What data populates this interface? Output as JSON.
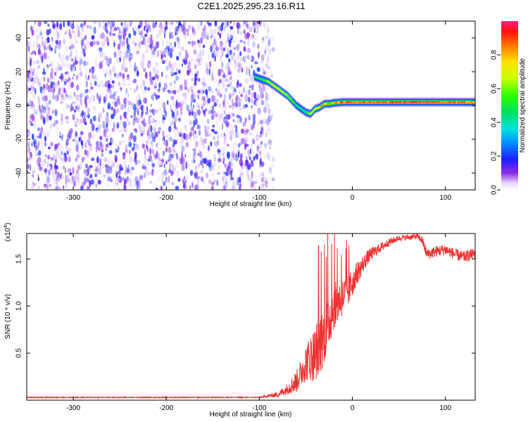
{
  "title": "C2E1.2025.295.23.16.R11",
  "chart_data": [
    {
      "type": "heatmap",
      "xlabel": "Height of straight line (km)",
      "ylabel": "Frequency (Hz)",
      "xlim": [
        -350,
        132
      ],
      "ylim": [
        -50,
        50
      ],
      "x_ticks": [
        -300,
        -200,
        -100,
        0,
        100
      ],
      "y_ticks": [
        -40,
        -20,
        0,
        20,
        40
      ],
      "noise_region": {
        "x": [
          -350,
          -85
        ],
        "y": [
          -50,
          50
        ],
        "typical_amplitude": 0.2
      },
      "signal_track": {
        "x": [
          -105,
          -100,
          -95,
          -90,
          -85,
          -80,
          -75,
          -70,
          -65,
          -60,
          -55,
          -50,
          -45,
          -40,
          -35,
          -30,
          -25,
          -20,
          -10,
          0,
          20,
          50,
          80,
          110,
          132
        ],
        "freq": [
          17,
          16,
          15,
          14,
          12,
          10,
          8,
          6,
          3,
          0,
          -2,
          -4,
          -5,
          -2,
          -1,
          1,
          1,
          1.5,
          2,
          2,
          2,
          2,
          2,
          2,
          2
        ],
        "amplitude": [
          0.45,
          0.5,
          0.55,
          0.65,
          0.75,
          0.75,
          0.7,
          0.65,
          0.6,
          0.5,
          0.5,
          0.55,
          0.7,
          0.75,
          0.8,
          0.85,
          0.85,
          0.85,
          0.9,
          0.9,
          0.9,
          0.95,
          0.95,
          0.9,
          0.85
        ]
      },
      "colorbar": {
        "label": "Normalized spectral amplitude",
        "range": [
          0,
          1
        ],
        "ticks": [
          "0.0",
          "0.2",
          "0.4",
          "0.6",
          "0.8"
        ],
        "tick_values": [
          0,
          0.2,
          0.4,
          0.6,
          0.8
        ]
      }
    },
    {
      "type": "line",
      "xlabel": "Height of straight line (km)",
      "ylabel": "SNR (10 * v/v)",
      "y_scale_label": "(x10",
      "y_scale_exponent": "4",
      "y_scale_suffix": ")",
      "xlim": [
        -350,
        132
      ],
      "ylim": [
        0,
        1.77
      ],
      "x_ticks": [
        -300,
        -200,
        -100,
        0,
        100
      ],
      "y_ticks": [
        0.5,
        1.0,
        1.5
      ],
      "y_tick_labels": [
        "0.5",
        "1.0",
        "1.5"
      ],
      "series": [
        {
          "name": "SNR",
          "color": "#ee3333",
          "x": [
            -350,
            -100,
            -80,
            -70,
            -60,
            -55,
            -50,
            -45,
            -40,
            -35,
            -30,
            -25,
            -20,
            -15,
            -10,
            -5,
            0,
            5,
            10,
            15,
            20,
            30,
            40,
            50,
            60,
            70,
            75,
            80,
            90,
            100,
            110,
            120,
            132
          ],
          "y": [
            0.03,
            0.03,
            0.06,
            0.12,
            0.2,
            0.3,
            0.4,
            0.45,
            0.5,
            0.6,
            0.7,
            0.85,
            1.0,
            1.05,
            1.1,
            1.15,
            1.25,
            1.35,
            1.42,
            1.5,
            1.55,
            1.62,
            1.68,
            1.72,
            1.73,
            1.74,
            1.7,
            1.55,
            1.58,
            1.6,
            1.55,
            1.52,
            1.56
          ],
          "noise": [
            0.005,
            0.005,
            0.03,
            0.06,
            0.12,
            0.15,
            0.2,
            0.25,
            0.3,
            0.35,
            0.3,
            0.3,
            0.25,
            0.22,
            0.2,
            0.18,
            0.15,
            0.12,
            0.1,
            0.08,
            0.07,
            0.05,
            0.04,
            0.03,
            0.03,
            0.03,
            0.05,
            0.06,
            0.06,
            0.06,
            0.06,
            0.06,
            0.06
          ]
        }
      ]
    }
  ]
}
